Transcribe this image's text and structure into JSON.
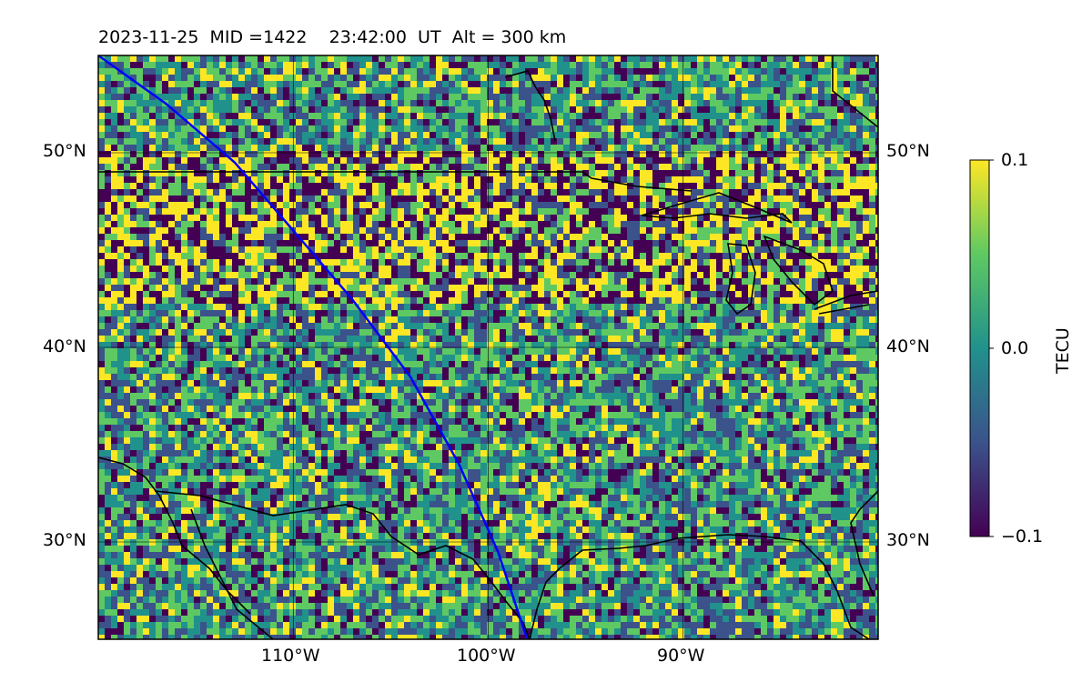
{
  "figure": {
    "date": "2023-11-25",
    "mid_text": "MID =1422",
    "time_text": "23:42:00  UT",
    "alt_text": "Alt = 300 km"
  },
  "map": {
    "lon_range": [
      -120,
      -80
    ],
    "lat_range": [
      25,
      55
    ],
    "lon_ticks": [
      {
        "value": -110,
        "label": "110°W"
      },
      {
        "value": -100,
        "label": "100°W"
      },
      {
        "value": -90,
        "label": "90°W"
      }
    ],
    "lat_ticks": [
      {
        "value": 50,
        "label": "50°N"
      },
      {
        "value": 40,
        "label": "40°N"
      },
      {
        "value": 30,
        "label": "30°N"
      }
    ],
    "grid": true,
    "track_color": "#0000ff",
    "coast_color": "#000000",
    "colormap": "viridis"
  },
  "colorbar": {
    "label": "TECU",
    "ticks": [
      {
        "value": 0.1,
        "label": "0.1"
      },
      {
        "value": 0.0,
        "label": "0.0"
      },
      {
        "value": -0.1,
        "label": "−0.1"
      }
    ],
    "range": [
      -0.1,
      0.1
    ],
    "colors": [
      "#440154",
      "#3b528b",
      "#21918c",
      "#5ec962",
      "#fde725"
    ]
  },
  "satellite_track": {
    "points": [
      [
        -120,
        55
      ],
      [
        -116.5,
        52.5
      ],
      [
        -113,
        49.5
      ],
      [
        -110,
        46
      ],
      [
        -107,
        42.5
      ],
      [
        -104,
        38.5
      ],
      [
        -101.5,
        34
      ],
      [
        -99.5,
        29.5
      ],
      [
        -98,
        25
      ]
    ]
  }
}
